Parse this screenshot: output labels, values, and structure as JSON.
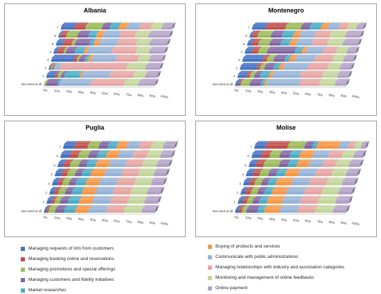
{
  "colors": [
    "#4472c4",
    "#c0504d",
    "#9bbb59",
    "#8064a2",
    "#4bacc6",
    "#f79646",
    "#95b3d7",
    "#e6a4a2",
    "#c3d69b",
    "#b3a2c7"
  ],
  "legend": [
    "Managing requests of info from customers",
    "Managing booking online and reservations",
    "Managing promotions and special offerings",
    "Managing customers and fidelity initiatives",
    "Market researches",
    "Buying of products and services",
    "Communicate with public administrations",
    "Managing relationships with industry and association categories",
    "Monitoring and management of online feedbacks",
    "Online payment"
  ],
  "chart_data": [
    {
      "type": "bar",
      "stacked": "percent",
      "orientation": "horizontal-3d",
      "title": "Albania",
      "categories": [
        "Not used at all",
        "1",
        "2",
        "3",
        "4",
        "5",
        "6",
        "7"
      ],
      "x_ticks": [
        "0%",
        "10%",
        "20%",
        "30%",
        "40%",
        "50%",
        "60%",
        "70%",
        "80%",
        "90%",
        "100%"
      ],
      "xlim": [
        0,
        100
      ],
      "series": [
        {
          "name": "Managing requests of info from customers",
          "values": [
            0,
            8,
            1,
            20,
            3,
            6,
            2,
            12
          ]
        },
        {
          "name": "Managing booking online and reservations",
          "values": [
            0,
            2,
            1,
            3,
            6,
            8,
            5,
            10
          ]
        },
        {
          "name": "Managing promotions and special offerings",
          "values": [
            2,
            3,
            1,
            2,
            2,
            3,
            10,
            15
          ]
        },
        {
          "name": "Managing customers and fidelity initiatives",
          "values": [
            10,
            3,
            1,
            5,
            8,
            13,
            10,
            7
          ]
        },
        {
          "name": "Market researches",
          "values": [
            2,
            14,
            1,
            3,
            8,
            4,
            7,
            8
          ]
        },
        {
          "name": "Buying of products and services",
          "values": [
            0,
            2,
            1,
            3,
            3,
            5,
            6,
            7
          ]
        },
        {
          "name": "Communicate with public administrations",
          "values": [
            28,
            25,
            4,
            22,
            22,
            16,
            15,
            12
          ]
        },
        {
          "name": "Managing relationships with industry and association categories",
          "values": [
            30,
            21,
            60,
            20,
            22,
            17,
            14,
            10
          ]
        },
        {
          "name": "Monitoring and management of online feedbacks",
          "values": [
            13,
            11,
            17,
            10,
            12,
            12,
            12,
            10
          ]
        },
        {
          "name": "Online payment",
          "values": [
            15,
            11,
            13,
            12,
            14,
            16,
            19,
            9
          ]
        }
      ]
    },
    {
      "type": "bar",
      "stacked": "percent",
      "orientation": "horizontal-3d",
      "title": "Montenegro",
      "categories": [
        "Not used at all",
        "1",
        "2",
        "3",
        "4",
        "5",
        "6",
        "7"
      ],
      "x_ticks": [
        "0%",
        "10%",
        "20%",
        "30%",
        "40%",
        "50%",
        "60%",
        "70%",
        "80%",
        "90%",
        "100%"
      ],
      "xlim": [
        0,
        100
      ],
      "series": [
        {
          "name": "Managing requests of info from customers",
          "values": [
            3,
            8,
            15,
            18,
            6,
            4,
            2,
            12
          ]
        },
        {
          "name": "Managing booking online and reservations",
          "values": [
            2,
            3,
            3,
            4,
            6,
            6,
            5,
            18
          ]
        },
        {
          "name": "Managing promotions and special offerings",
          "values": [
            8,
            4,
            4,
            6,
            8,
            10,
            12,
            14
          ]
        },
        {
          "name": "Managing customers and fidelity initiatives",
          "values": [
            10,
            5,
            8,
            10,
            25,
            10,
            10,
            8
          ]
        },
        {
          "name": "Market researches",
          "values": [
            3,
            8,
            5,
            4,
            6,
            8,
            10,
            10
          ]
        },
        {
          "name": "Buying of products and services",
          "values": [
            2,
            3,
            4,
            5,
            4,
            6,
            6,
            6
          ]
        },
        {
          "name": "Communicate with public administrations",
          "values": [
            30,
            25,
            22,
            18,
            15,
            14,
            13,
            10
          ]
        },
        {
          "name": "Managing relationships with industry and association categories",
          "values": [
            18,
            20,
            18,
            16,
            12,
            14,
            14,
            8
          ]
        },
        {
          "name": "Monitoring and management of online feedbacks",
          "values": [
            14,
            14,
            11,
            10,
            10,
            14,
            14,
            8
          ]
        },
        {
          "name": "Online payment",
          "values": [
            10,
            10,
            10,
            9,
            8,
            14,
            14,
            6
          ]
        }
      ]
    },
    {
      "type": "bar",
      "stacked": "percent",
      "orientation": "horizontal-3d",
      "title": "Puglia",
      "categories": [
        "Not used at all",
        "1",
        "2",
        "3",
        "4",
        "5",
        "6",
        "7"
      ],
      "x_ticks": [
        "0%",
        "10%",
        "20%",
        "30%",
        "40%",
        "50%",
        "60%",
        "70%",
        "80%",
        "90%",
        "100%"
      ],
      "xlim": [
        0,
        100
      ],
      "series": [
        {
          "name": "Managing requests of info from customers",
          "values": [
            2,
            4,
            4,
            5,
            6,
            5,
            8,
            10
          ]
        },
        {
          "name": "Managing booking online and reservations",
          "values": [
            2,
            3,
            4,
            4,
            5,
            6,
            8,
            12
          ]
        },
        {
          "name": "Managing promotions and special offerings",
          "values": [
            6,
            5,
            6,
            6,
            7,
            8,
            9,
            10
          ]
        },
        {
          "name": "Managing customers and fidelity initiatives",
          "values": [
            8,
            7,
            6,
            6,
            6,
            7,
            8,
            8
          ]
        },
        {
          "name": "Market researches",
          "values": [
            10,
            10,
            9,
            9,
            8,
            8,
            8,
            8
          ]
        },
        {
          "name": "Buying of products and services",
          "values": [
            12,
            12,
            12,
            12,
            13,
            12,
            11,
            9
          ]
        },
        {
          "name": "Communicate with public administrations",
          "values": [
            16,
            16,
            16,
            16,
            15,
            15,
            13,
            11
          ]
        },
        {
          "name": "Managing relationships with industry and association categories",
          "values": [
            16,
            16,
            16,
            16,
            15,
            15,
            13,
            11
          ]
        },
        {
          "name": "Monitoring and management of online feedbacks",
          "values": [
            16,
            15,
            15,
            15,
            14,
            13,
            12,
            11
          ]
        },
        {
          "name": "Online payment",
          "values": [
            12,
            12,
            12,
            11,
            11,
            11,
            10,
            10
          ]
        }
      ]
    },
    {
      "type": "bar",
      "stacked": "percent",
      "orientation": "horizontal-3d",
      "title": "Molise",
      "categories": [
        "Not used at all",
        "1",
        "2",
        "3",
        "4",
        "5",
        "6",
        "7"
      ],
      "x_ticks": [
        "0%",
        "10%",
        "20%",
        "30%",
        "40%",
        "50%",
        "60%",
        "70%",
        "80%",
        "90%",
        "100%"
      ],
      "xlim": [
        0,
        100
      ],
      "series": [
        {
          "name": "Managing requests of info from customers",
          "values": [
            3,
            4,
            4,
            5,
            6,
            6,
            8,
            10
          ]
        },
        {
          "name": "Managing booking online and reservations",
          "values": [
            3,
            4,
            5,
            5,
            6,
            7,
            8,
            20
          ]
        },
        {
          "name": "Managing promotions and special offerings",
          "values": [
            4,
            5,
            6,
            6,
            8,
            14,
            9,
            15
          ]
        },
        {
          "name": "Managing customers and fidelity initiatives",
          "values": [
            10,
            6,
            6,
            6,
            7,
            8,
            9,
            7
          ]
        },
        {
          "name": "Market researches",
          "values": [
            6,
            7,
            7,
            7,
            8,
            8,
            9,
            4
          ]
        },
        {
          "name": "Buying of products and services",
          "values": [
            14,
            14,
            13,
            14,
            12,
            11,
            12,
            20
          ]
        },
        {
          "name": "Communicate with public administrations",
          "values": [
            16,
            16,
            16,
            16,
            15,
            12,
            14,
            8
          ]
        },
        {
          "name": "Managing relationships with industry and association categories",
          "values": [
            16,
            16,
            16,
            16,
            15,
            12,
            12,
            6
          ]
        },
        {
          "name": "Monitoring and management of online feedbacks",
          "values": [
            16,
            16,
            15,
            14,
            13,
            12,
            11,
            6
          ]
        },
        {
          "name": "Online payment",
          "values": [
            12,
            12,
            12,
            11,
            10,
            10,
            8,
            4
          ]
        }
      ]
    }
  ]
}
